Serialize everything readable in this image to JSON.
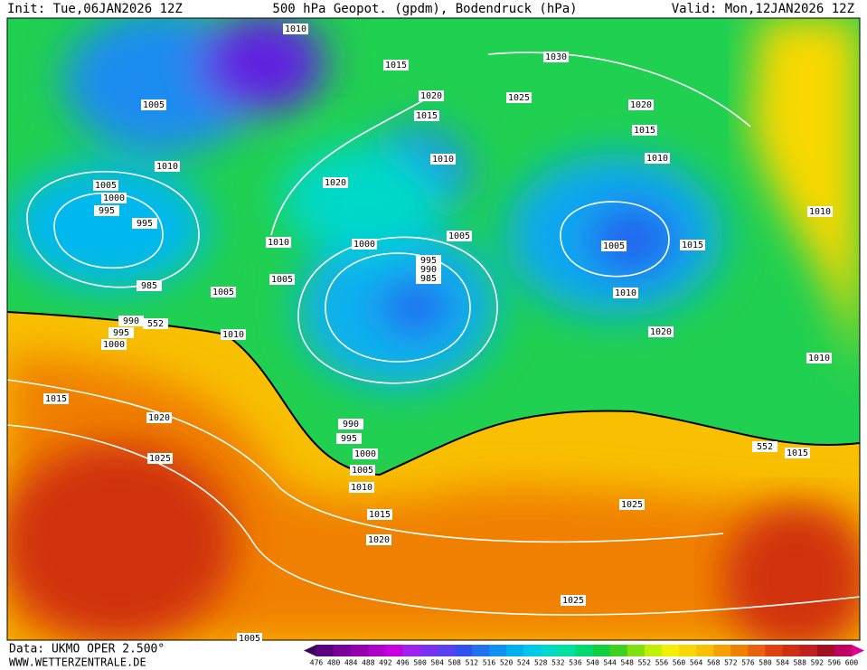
{
  "header": {
    "init": "Init: Tue,06JAN2026 12Z",
    "title": "500 hPa Geopot. (gpdm), Bodendruck (hPa)",
    "valid": "Valid: Mon,12JAN2026 12Z"
  },
  "footer": {
    "source": "Data: UKMO OPER 2.500°",
    "website": "WWW.WETTERZENTRALE.DE"
  },
  "contour_labels": [
    1010,
    1015,
    1030,
    1020,
    1025,
    1015,
    1020,
    1015,
    1005,
    1010,
    1010,
    1010,
    1020,
    1005,
    1000,
    995,
    995,
    1010,
    1005,
    1000,
    1005,
    1015,
    1010,
    995,
    990,
    985,
    985,
    1005,
    1005,
    1010,
    990,
    552,
    995,
    1000,
    1010,
    1020,
    1010,
    1015,
    1020,
    990,
    995,
    1000,
    1025,
    552,
    1015,
    1005,
    1010,
    1025,
    1015,
    1020,
    1025,
    1005
  ],
  "colorbar": {
    "labels": [
      476,
      480,
      484,
      488,
      492,
      496,
      500,
      504,
      508,
      512,
      516,
      520,
      524,
      528,
      532,
      536,
      540,
      544,
      548,
      552,
      556,
      560,
      564,
      568,
      572,
      576,
      580,
      584,
      588,
      592,
      596,
      600
    ],
    "colors": [
      "#3d0060",
      "#5a0080",
      "#7a0099",
      "#9400b0",
      "#b000c8",
      "#c800e0",
      "#a020f0",
      "#7a30f0",
      "#5a40f0",
      "#3050f0",
      "#2070f0",
      "#1090f0",
      "#00b0f0",
      "#00c8e8",
      "#00d8c8",
      "#00e0a0",
      "#00d870",
      "#10d040",
      "#40d020",
      "#80e010",
      "#c0f000",
      "#f0f000",
      "#f8d800",
      "#f8c000",
      "#f8a000",
      "#f08000",
      "#e86010",
      "#e04010",
      "#d03010",
      "#c02020",
      "#a01020",
      "#c00060",
      "#e00090"
    ]
  }
}
